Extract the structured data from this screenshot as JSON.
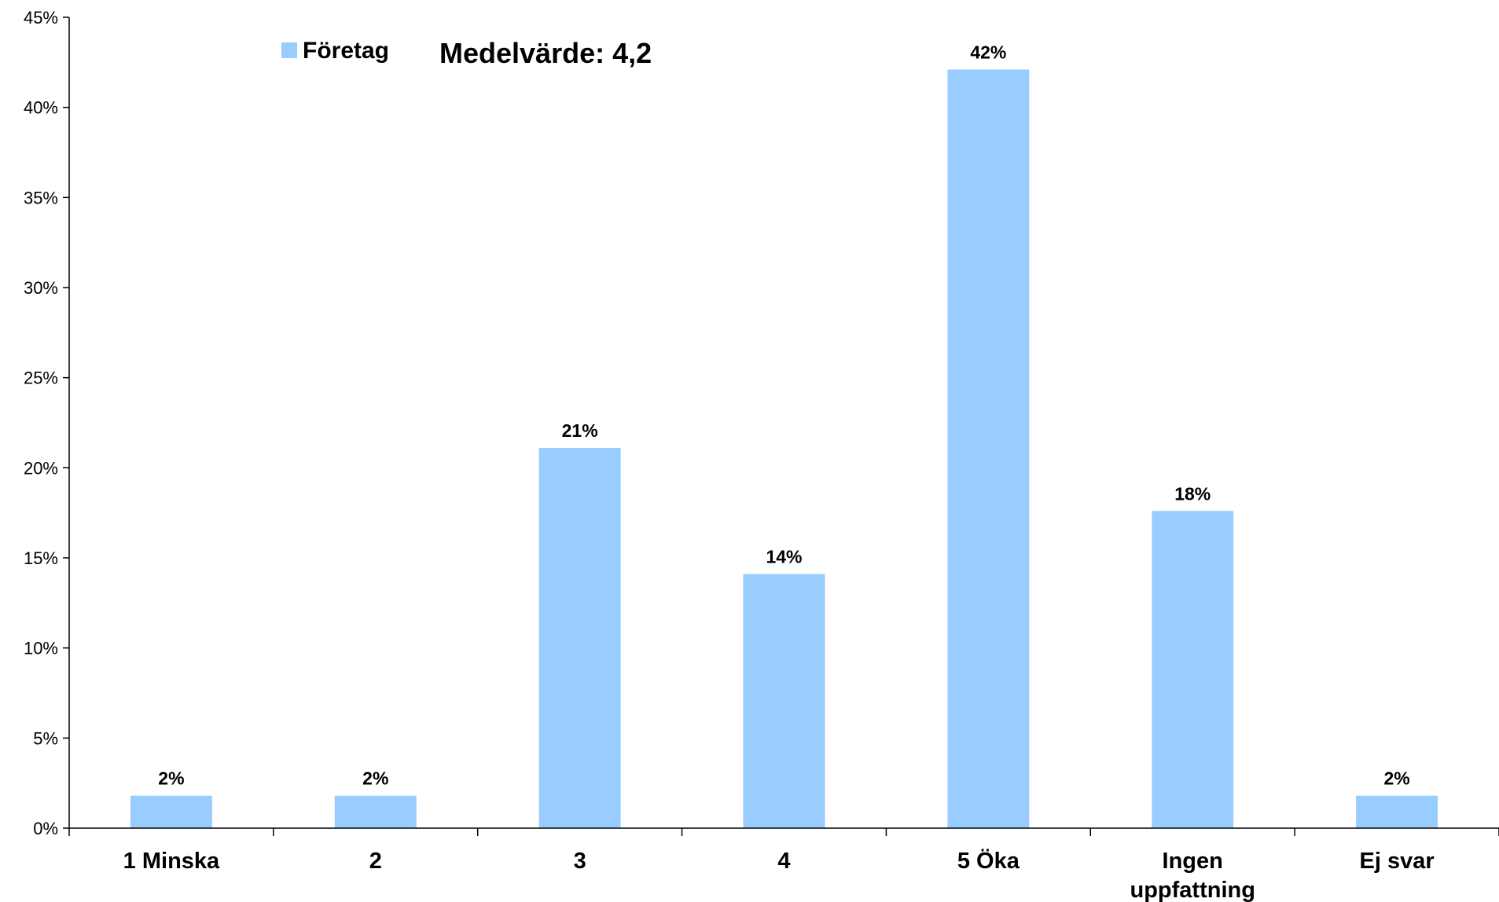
{
  "chart_data": {
    "type": "bar",
    "categories": [
      "1 Minska",
      "2",
      "3",
      "4",
      "5 Öka",
      "Ingen uppfattning",
      "Ej svar"
    ],
    "category_lines": [
      [
        "1 Minska"
      ],
      [
        "2"
      ],
      [
        "3"
      ],
      [
        "4"
      ],
      [
        "5 Öka"
      ],
      [
        "Ingen",
        "uppfattning"
      ],
      [
        "Ej svar"
      ]
    ],
    "series": [
      {
        "name": "Företag",
        "values": [
          2,
          2,
          21,
          14,
          42,
          18,
          2
        ],
        "plotted_values": [
          1.8,
          1.8,
          21.1,
          14.1,
          42.1,
          17.6,
          1.8
        ],
        "color": "#99ccff"
      }
    ],
    "data_labels": [
      "2%",
      "2%",
      "21%",
      "14%",
      "42%",
      "18%",
      "2%"
    ],
    "yticks": [
      "0%",
      "5%",
      "10%",
      "15%",
      "20%",
      "25%",
      "30%",
      "35%",
      "40%",
      "45%"
    ],
    "ylim": [
      0,
      45
    ],
    "ystep": 5,
    "legend": {
      "label": "Företag",
      "position": "top-left"
    },
    "annotation": "Medelvärde: 4,2",
    "grid": false
  }
}
